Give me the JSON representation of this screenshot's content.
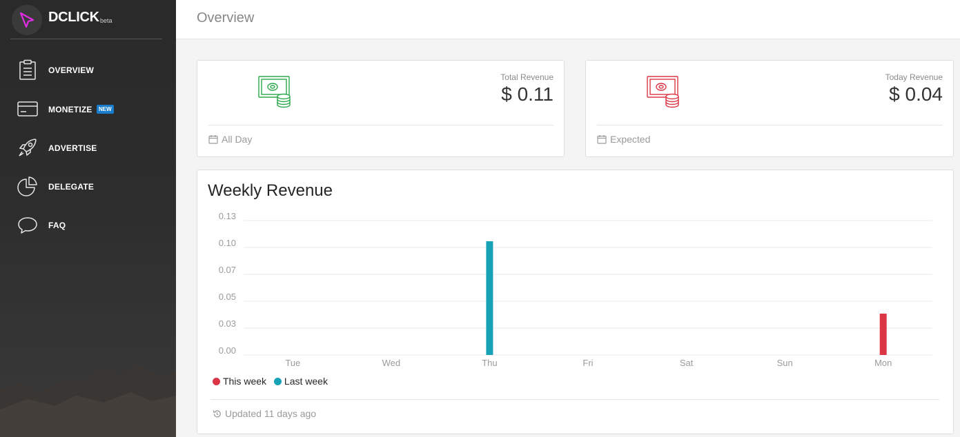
{
  "brand": {
    "name": "DCLICK",
    "suffix": "beta"
  },
  "sidebar": {
    "items": [
      {
        "label": "OVERVIEW",
        "icon": "clipboard-icon"
      },
      {
        "label": "MONETIZE",
        "icon": "credit-card-icon",
        "badge": "NEW"
      },
      {
        "label": "ADVERTISE",
        "icon": "rocket-icon"
      },
      {
        "label": "DELEGATE",
        "icon": "pie-chart-icon"
      },
      {
        "label": "FAQ",
        "icon": "chat-bubble-icon"
      }
    ]
  },
  "header": {
    "title": "Overview"
  },
  "cards": [
    {
      "category": "Total Revenue",
      "value": "$ 0.11",
      "footer": "All Day",
      "icon": "money-coins-icon",
      "color": "#2ba84a"
    },
    {
      "category": "Today Revenue",
      "value": "$ 0.04",
      "footer": "Expected",
      "icon": "money-coins-icon",
      "color": "#dc3545"
    }
  ],
  "chart": {
    "title": "Weekly Revenue",
    "footer": "Updated 11 days ago"
  },
  "colors": {
    "this_week": "#dc3545",
    "last_week": "#17a2b8"
  },
  "chart_data": {
    "type": "bar",
    "title": "Weekly Revenue",
    "categories": [
      "Tue",
      "Wed",
      "Thu",
      "Fri",
      "Sat",
      "Sun",
      "Mon"
    ],
    "ylim": [
      0,
      0.13
    ],
    "yticks": [
      "0.13",
      "0.10",
      "0.07",
      "0.05",
      "0.03",
      "0.00"
    ],
    "series": [
      {
        "name": "This week",
        "color": "#dc3545",
        "values": [
          0,
          0,
          0,
          0,
          0,
          0,
          0.04
        ]
      },
      {
        "name": "Last week",
        "color": "#17a2b8",
        "values": [
          0,
          0,
          0.11,
          0,
          0,
          0,
          0
        ]
      }
    ],
    "grid": true,
    "legend": "bottom-left"
  }
}
